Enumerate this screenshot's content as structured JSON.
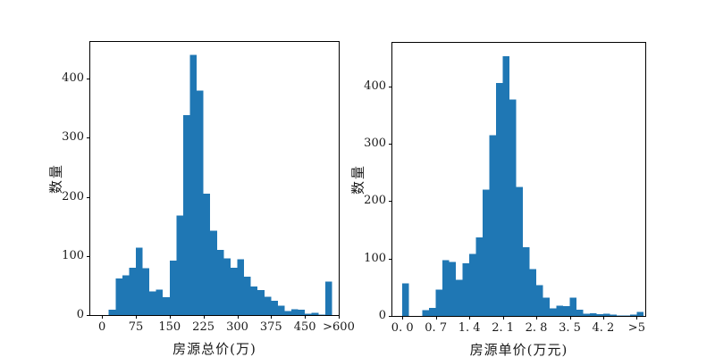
{
  "figure": {
    "background": "#ffffff",
    "bar_color": "#1f77b4",
    "axis_color": "#000000",
    "text_color": "#1a1a1a"
  },
  "chart_data": [
    {
      "id": "total-price-histogram",
      "type": "bar",
      "title": "",
      "xlabel": "房源总价(万)",
      "ylabel": "数量",
      "grid": false,
      "legend": null,
      "bin_start": 15,
      "bin_width": 15,
      "counts": [
        9,
        62,
        67,
        80,
        114,
        79,
        40,
        43,
        30,
        92,
        168,
        338,
        440,
        380,
        205,
        143,
        110,
        96,
        80,
        94,
        65,
        48,
        42,
        31,
        24,
        16,
        7,
        10,
        9,
        2,
        4,
        1,
        57
      ],
      "xlim": [
        -26,
        525
      ],
      "ylim": [
        0,
        462
      ],
      "xticks": {
        "values": [
          0,
          75,
          150,
          225,
          300,
          375,
          450,
          525
        ],
        "labels": [
          "0",
          "75",
          "150",
          "225",
          "300",
          "375",
          "450",
          ">600"
        ]
      },
      "yticks": {
        "values": [
          0,
          100,
          200,
          300,
          400
        ],
        "labels": [
          "0",
          "100",
          "200",
          "300",
          "400"
        ]
      },
      "note_last_bin": "values above 600 are clipped into the final spike bin under the >600 tick"
    },
    {
      "id": "unit-price-histogram",
      "type": "bar",
      "title": "",
      "xlabel": "房源单价(万元)",
      "ylabel": "数量",
      "grid": false,
      "legend": null,
      "bin_start": 0,
      "bin_width": 0.14,
      "counts": [
        57,
        0,
        0,
        10,
        14,
        46,
        97,
        94,
        63,
        92,
        108,
        137,
        220,
        315,
        406,
        453,
        377,
        225,
        120,
        82,
        54,
        32,
        13,
        18,
        17,
        32,
        11,
        4,
        5,
        3,
        4,
        2,
        1,
        1,
        2,
        7
      ],
      "xlim": [
        -0.21,
        5.08
      ],
      "ylim": [
        0,
        476
      ],
      "xticks": {
        "values": [
          0,
          0.7,
          1.4,
          2.1,
          2.8,
          3.5,
          4.2,
          4.9
        ],
        "labels": [
          "0. 0",
          "0. 7",
          "1. 4",
          "2. 1",
          "2. 8",
          "3. 5",
          "4. 2",
          ">5"
        ]
      },
      "yticks": {
        "values": [
          0,
          100,
          200,
          300,
          400
        ],
        "labels": [
          "0",
          "100",
          "200",
          "300",
          "400"
        ]
      },
      "note_last_bin": "values above 5 are clipped into the final small bin under the >5 tick"
    }
  ]
}
